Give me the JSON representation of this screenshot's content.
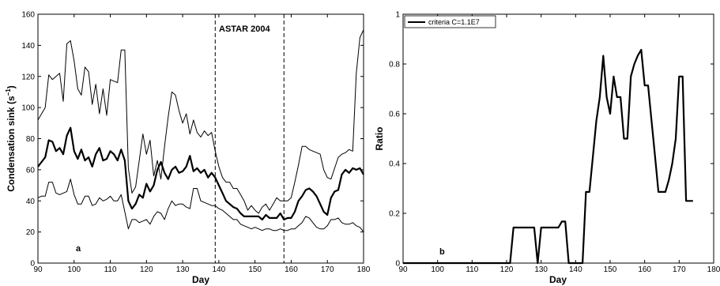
{
  "chart_data": [
    {
      "type": "line",
      "panel_label": "a",
      "xlabel": "Day",
      "ylabel": "Condensation sink (s",
      "ylabel_superscript": "−1",
      "ylabel_close": ")",
      "xlim": [
        90,
        180
      ],
      "ylim": [
        0,
        160
      ],
      "xticks": [
        90,
        100,
        110,
        120,
        130,
        140,
        150,
        160,
        170,
        180
      ],
      "yticks": [
        0,
        20,
        40,
        60,
        80,
        100,
        120,
        140,
        160
      ],
      "annotation": "ASTAR 2004",
      "vlines": [
        139,
        158
      ],
      "grid": false,
      "series": [
        {
          "role": "upper",
          "x": [
            90,
            91,
            92,
            93,
            94,
            95,
            96,
            97,
            98,
            99,
            100,
            101,
            102,
            103,
            104,
            105,
            106,
            107,
            108,
            109,
            110,
            111,
            112,
            113,
            114,
            115,
            116,
            117,
            118,
            119,
            120,
            121,
            122,
            123,
            124,
            125,
            126,
            127,
            128,
            129,
            130,
            131,
            132,
            133,
            134,
            135,
            136,
            137,
            138,
            139,
            140,
            141,
            142,
            143,
            144,
            145,
            146,
            147,
            148,
            149,
            150,
            151,
            152,
            153,
            154,
            155,
            156,
            157,
            158,
            159,
            160,
            161,
            162,
            163,
            164,
            165,
            166,
            167,
            168,
            169,
            170,
            171,
            172,
            173,
            174,
            175,
            176,
            177,
            178,
            179,
            180
          ],
          "y": [
            92,
            96,
            100,
            121,
            118,
            120,
            122,
            104,
            141,
            143,
            130,
            112,
            108,
            126,
            123,
            102,
            115,
            96,
            112,
            95,
            118,
            117,
            116,
            137,
            137,
            61,
            45,
            49,
            66,
            83,
            70,
            79,
            56,
            66,
            54,
            75,
            94,
            110,
            108,
            98,
            90,
            96,
            83,
            92,
            84,
            81,
            85,
            82,
            84,
            72,
            62,
            55,
            52,
            52,
            48,
            48,
            44,
            40,
            34,
            37,
            34,
            32,
            36,
            38,
            34,
            38,
            42,
            40,
            40,
            40,
            42,
            52,
            63,
            75,
            75,
            73,
            72,
            71,
            70,
            60,
            55,
            54,
            61,
            68,
            70,
            71,
            73,
            72,
            122,
            145,
            150
          ]
        },
        {
          "role": "mean",
          "x": [
            90,
            91,
            92,
            93,
            94,
            95,
            96,
            97,
            98,
            99,
            100,
            101,
            102,
            103,
            104,
            105,
            106,
            107,
            108,
            109,
            110,
            111,
            112,
            113,
            114,
            115,
            116,
            117,
            118,
            119,
            120,
            121,
            122,
            123,
            124,
            125,
            126,
            127,
            128,
            129,
            130,
            131,
            132,
            133,
            134,
            135,
            136,
            137,
            138,
            139,
            140,
            141,
            142,
            143,
            144,
            145,
            146,
            147,
            148,
            149,
            150,
            151,
            152,
            153,
            154,
            155,
            156,
            157,
            158,
            159,
            160,
            161,
            162,
            163,
            164,
            165,
            166,
            167,
            168,
            169,
            170,
            171,
            172,
            173,
            174,
            175,
            176,
            177,
            178,
            179,
            180
          ],
          "y": [
            62,
            65,
            68,
            79,
            78,
            72,
            74,
            70,
            82,
            87,
            72,
            67,
            73,
            66,
            68,
            62,
            70,
            74,
            66,
            67,
            72,
            70,
            66,
            73,
            66,
            40,
            35,
            38,
            44,
            42,
            51,
            46,
            50,
            60,
            65,
            58,
            54,
            60,
            62,
            58,
            59,
            62,
            69,
            59,
            61,
            58,
            60,
            55,
            58,
            55,
            50,
            45,
            40,
            38,
            36,
            35,
            32,
            30,
            30,
            30,
            30,
            30,
            28,
            31,
            29,
            29,
            29,
            32,
            28,
            29,
            29,
            33,
            40,
            43,
            47,
            48,
            46,
            43,
            38,
            33,
            31,
            42,
            46,
            47,
            57,
            60,
            58,
            61,
            60,
            61,
            57
          ]
        },
        {
          "role": "lower",
          "x": [
            90,
            91,
            92,
            93,
            94,
            95,
            96,
            97,
            98,
            99,
            100,
            101,
            102,
            103,
            104,
            105,
            106,
            107,
            108,
            109,
            110,
            111,
            112,
            113,
            114,
            115,
            116,
            117,
            118,
            119,
            120,
            121,
            122,
            123,
            124,
            125,
            126,
            127,
            128,
            129,
            130,
            131,
            132,
            133,
            134,
            135,
            136,
            137,
            138,
            139,
            140,
            141,
            142,
            143,
            144,
            145,
            146,
            147,
            148,
            149,
            150,
            151,
            152,
            153,
            154,
            155,
            156,
            157,
            158,
            159,
            160,
            161,
            162,
            163,
            164,
            165,
            166,
            167,
            168,
            169,
            170,
            171,
            172,
            173,
            174,
            175,
            176,
            177,
            178,
            179,
            180
          ],
          "y": [
            42,
            43,
            43,
            52,
            52,
            45,
            44,
            45,
            46,
            54,
            44,
            38,
            38,
            43,
            43,
            37,
            38,
            42,
            40,
            41,
            43,
            40,
            40,
            44,
            33,
            22,
            28,
            28,
            26,
            27,
            28,
            25,
            30,
            33,
            32,
            28,
            35,
            40,
            37,
            38,
            38,
            36,
            35,
            48,
            48,
            40,
            39,
            38,
            37,
            37,
            35,
            34,
            32,
            30,
            28,
            28,
            25,
            24,
            23,
            22,
            23,
            22,
            21,
            22,
            22,
            21,
            21,
            22,
            21,
            21,
            22,
            22,
            24,
            26,
            30,
            29,
            26,
            23,
            22,
            22,
            24,
            28,
            28,
            29,
            26,
            25,
            25,
            26,
            24,
            23,
            20
          ]
        }
      ]
    },
    {
      "type": "line",
      "panel_label": "b",
      "xlabel": "Day",
      "ylabel": "Ratio",
      "xlim": [
        90,
        180
      ],
      "ylim": [
        0,
        1
      ],
      "xticks": [
        90,
        100,
        110,
        120,
        130,
        140,
        150,
        160,
        170,
        180
      ],
      "yticks": [
        0,
        0.2,
        0.4,
        0.6,
        0.8,
        1
      ],
      "legend_position": "top-left",
      "grid": false,
      "series": [
        {
          "name": "criteria C=1.1E7",
          "x": [
            90,
            121,
            122,
            127,
            128,
            129,
            130,
            131,
            135,
            136,
            137,
            138,
            139,
            142,
            143,
            144,
            145,
            146,
            147,
            148,
            149,
            150,
            151,
            152,
            153,
            154,
            155,
            156,
            157,
            158,
            159,
            160,
            161,
            162,
            163,
            164,
            165,
            166,
            167,
            168,
            169,
            170,
            171,
            172,
            173,
            174
          ],
          "y": [
            0,
            0,
            0.143,
            0.143,
            0.143,
            0,
            0.143,
            0.143,
            0.143,
            0.167,
            0.167,
            0,
            0,
            0,
            0.286,
            0.286,
            0.429,
            0.571,
            0.667,
            0.833,
            0.667,
            0.6,
            0.75,
            0.667,
            0.667,
            0.5,
            0.5,
            0.75,
            0.8,
            0.833,
            0.857,
            0.714,
            0.714,
            0.571,
            0.429,
            0.286,
            0.286,
            0.286,
            0.333,
            0.4,
            0.5,
            0.75,
            0.75,
            0.25,
            0.25,
            0.25
          ]
        }
      ]
    }
  ]
}
